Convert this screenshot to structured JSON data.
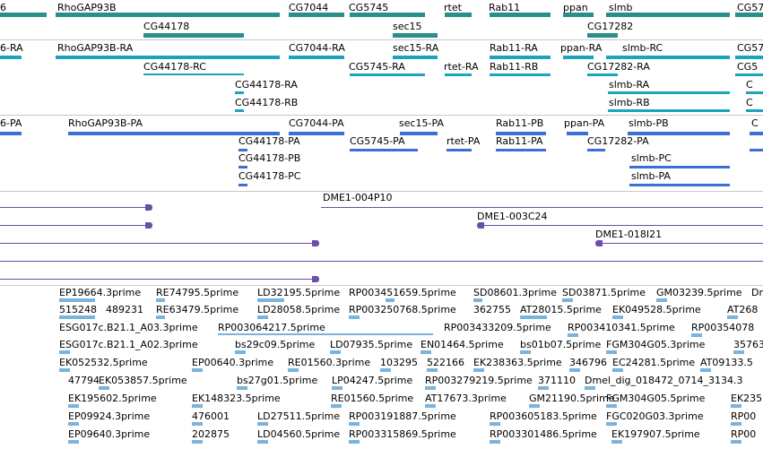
{
  "colors": {
    "gene": "#2a8f8a",
    "mrna": "#1ba4bd",
    "protein": "#3a6fd6",
    "clone": "#6a4fa8",
    "est": "#7ab4dd",
    "separator": "#c8c8c8"
  },
  "tracks": {
    "genes": {
      "labels": [
        "6",
        "RhoGAP93B",
        "CG7044",
        "CG5745",
        "rtet",
        "Rab11",
        "ppan",
        "slmb",
        "CG57",
        "CG44178",
        "sec15",
        "CG17282"
      ]
    },
    "transcripts": {
      "labels": [
        "6-RA",
        "RhoGAP93B-RA",
        "CG7044-RA",
        "sec15-RA",
        "Rab11-RA",
        "ppan-RA",
        "slmb-RC",
        "CG57",
        "CG44178-RC",
        "CG5745-RA",
        "rtet-RA",
        "Rab11-RB",
        "CG17282-RA",
        "CG5",
        "CG44178-RA",
        "slmb-RA",
        "C",
        "CG44178-RB",
        "slmb-RB",
        "C"
      ]
    },
    "proteins": {
      "labels": [
        "6-PA",
        "RhoGAP93B-PA",
        "CG7044-PA",
        "sec15-PA",
        "Rab11-PB",
        "ppan-PA",
        "slmb-PB",
        "C",
        "CG44178-PA",
        "CG5745-PA",
        "rtet-PA",
        "Rab11-PA",
        "CG17282-PA",
        "CG44178-PB",
        "slmb-PC",
        "CG44178-PC",
        "slmb-PA"
      ]
    },
    "clones": {
      "labels": [
        "DME1-004P10",
        "DME1-003C24",
        "DME1-018I21"
      ]
    },
    "ests": {
      "rows": [
        [
          "EP19664.3prime",
          "RE74795.5prime",
          "LD32195.5prime",
          "RP003451659.5prime",
          "SD08601.3prime",
          "SD03871.5prime",
          "GM03239.5prime",
          "Dr"
        ],
        [
          "515248",
          "489231",
          "RE63479.5prime",
          "LD28058.5prime",
          "RP003250768.5prime",
          "362755",
          "AT28015.5prime",
          "EK049528.5prime",
          "AT268"
        ],
        [
          "ESG017c.B21.1_A03.3prime",
          "RP003064217.5prime",
          "RP003433209.5prime",
          "RP003410341.5prime",
          "RP00354078"
        ],
        [
          "ESG017c.B21.1_A02.3prime",
          "bs29c09.5prime",
          "LD07935.5prime",
          "EN01464.5prime",
          "bs01b07.5prime",
          "FGM304G05.3prime",
          "35763"
        ],
        [
          "EK052532.5prime",
          "EP00640.3prime",
          "RE01560.3prime",
          "103295",
          "522166",
          "EK238363.5prime",
          "346796",
          "EC24281.5prime",
          "AT09133.5"
        ],
        [
          "47794",
          "EK053857.5prime",
          "bs27g01.5prime",
          "LP04247.5prime",
          "RP003279219.5prime",
          "371110",
          "Dmel_dig_018472_0714_3134.3"
        ],
        [
          "EK195602.5prime",
          "EK148323.5prime",
          "RE01560.5prime",
          "AT17673.3prime",
          "GM21190.5prime",
          "FGM304G05.5prime",
          "EK235"
        ],
        [
          "EP09924.3prime",
          "476001",
          "LD27511.5prime",
          "RP003191887.5prime",
          "RP003605183.5prime",
          "FGC020G03.3prime",
          "RP00"
        ],
        [
          "EP09640.3prime",
          "202875",
          "LD04560.5prime",
          "RP003315869.5prime",
          "RP003301486.5prime",
          "EK197907.5prime",
          "RP00"
        ]
      ]
    }
  }
}
